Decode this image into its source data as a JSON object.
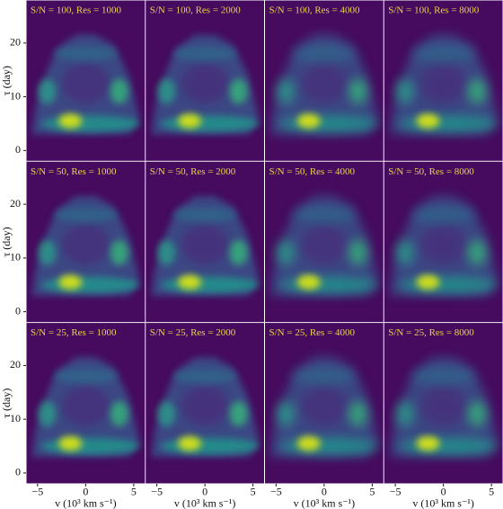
{
  "chart_data": [
    {
      "type": "heatmap",
      "title": "S/N = 100, Res = 1000",
      "xlim": [
        -6.2,
        6.2
      ],
      "ylim": [
        -2,
        28
      ],
      "yticks": [
        0,
        10,
        20
      ],
      "ylabel": "τ (day)"
    },
    {
      "type": "heatmap",
      "title": "S/N = 100, Res = 2000",
      "xlim": [
        -6.2,
        6.2
      ],
      "ylim": [
        -2,
        28
      ]
    },
    {
      "type": "heatmap",
      "title": "S/N = 100, Res = 4000",
      "xlim": [
        -6.2,
        6.2
      ],
      "ylim": [
        -2,
        28
      ]
    },
    {
      "type": "heatmap",
      "title": "S/N = 100, Res = 8000",
      "xlim": [
        -6.2,
        6.2
      ],
      "ylim": [
        -2,
        28
      ]
    },
    {
      "type": "heatmap",
      "title": "S/N = 50, Res = 1000",
      "xlim": [
        -6.2,
        6.2
      ],
      "ylim": [
        -2,
        28
      ],
      "yticks": [
        0,
        10,
        20
      ],
      "ylabel": "τ (day)"
    },
    {
      "type": "heatmap",
      "title": "S/N = 50, Res = 2000",
      "xlim": [
        -6.2,
        6.2
      ],
      "ylim": [
        -2,
        28
      ]
    },
    {
      "type": "heatmap",
      "title": "S/N = 50, Res = 4000",
      "xlim": [
        -6.2,
        6.2
      ],
      "ylim": [
        -2,
        28
      ]
    },
    {
      "type": "heatmap",
      "title": "S/N = 50, Res = 8000",
      "xlim": [
        -6.2,
        6.2
      ],
      "ylim": [
        -2,
        28
      ]
    },
    {
      "type": "heatmap",
      "title": "S/N = 25, Res = 1000",
      "xlim": [
        -6.2,
        6.2
      ],
      "ylim": [
        -2,
        28
      ],
      "yticks": [
        0,
        10,
        20
      ],
      "ylabel": "τ (day)",
      "xticks": [
        {
          "value": -5,
          "label": "−5"
        },
        0,
        5
      ],
      "xlabel": "v (10³ km s⁻¹)"
    },
    {
      "type": "heatmap",
      "title": "S/N = 25, Res = 2000",
      "xlim": [
        -6.2,
        6.2
      ],
      "ylim": [
        -2,
        28
      ],
      "xticks": [
        {
          "value": -5,
          "label": "−5"
        },
        0,
        5
      ],
      "xlabel": "v (10³ km s⁻¹)"
    },
    {
      "type": "heatmap",
      "title": "S/N = 25, Res = 4000",
      "xlim": [
        -6.2,
        6.2
      ],
      "ylim": [
        -2,
        28
      ],
      "xticks": [
        {
          "value": -5,
          "label": "−5"
        },
        0,
        5
      ],
      "xlabel": "v (10³ km s⁻¹)"
    },
    {
      "type": "heatmap",
      "title": "S/N = 25, Res = 8000",
      "xlim": [
        -6.2,
        6.2
      ],
      "ylim": [
        -2,
        28
      ],
      "xticks": [
        {
          "value": -5,
          "label": "−5"
        },
        0,
        5
      ],
      "xlabel": "v (10³ km s⁻¹)"
    }
  ]
}
